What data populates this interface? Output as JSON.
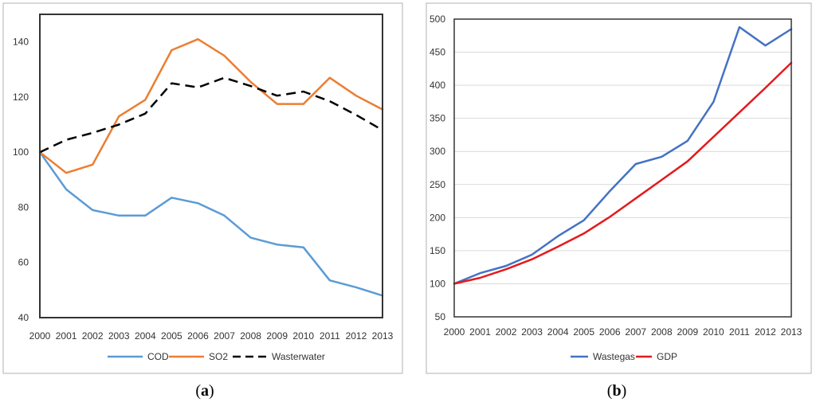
{
  "chart_data": [
    {
      "type": "line",
      "caption": {
        "open": "(",
        "letter": "a",
        "close": ")"
      },
      "x": [
        "2000",
        "2001",
        "2002",
        "2003",
        "2004",
        "2005",
        "2006",
        "2007",
        "2008",
        "2009",
        "2010",
        "2011",
        "2012",
        "2013"
      ],
      "ylim": [
        40,
        150
      ],
      "yticks": [
        40,
        60,
        80,
        100,
        120,
        140
      ],
      "grid": false,
      "legend_position": "bottom",
      "series": [
        {
          "name": "COD",
          "color": "#5b9bd5",
          "dash": "none",
          "values": [
            100,
            86.5,
            79,
            77,
            77,
            83.5,
            81.5,
            77,
            69,
            66.5,
            65.5,
            53.5,
            51,
            48
          ]
        },
        {
          "name": "SO2",
          "color": "#ed7d31",
          "dash": "none",
          "values": [
            100,
            92.5,
            95.5,
            113,
            119,
            137,
            141,
            135,
            125.5,
            117.5,
            117.5,
            127,
            120.5,
            115.5
          ]
        },
        {
          "name": "Wasterwater",
          "color": "#000000",
          "dash": "12,7",
          "values": [
            100,
            104.5,
            107,
            110,
            114,
            125,
            123.5,
            127,
            124,
            120.5,
            122,
            118.5,
            113.5,
            108
          ]
        }
      ]
    },
    {
      "type": "line",
      "caption": {
        "open": "(",
        "letter": "b",
        "close": ")"
      },
      "x": [
        "2000",
        "2001",
        "2002",
        "2003",
        "2004",
        "2005",
        "2006",
        "2007",
        "2008",
        "2009",
        "2010",
        "2011",
        "2012",
        "2013"
      ],
      "ylim": [
        50,
        500
      ],
      "yticks": [
        50,
        100,
        150,
        200,
        250,
        300,
        350,
        400,
        450,
        500
      ],
      "grid": true,
      "legend_position": "bottom",
      "series": [
        {
          "name": "Wastegas",
          "color": "#4472c4",
          "dash": "none",
          "values": [
            100,
            116,
            127,
            144,
            172,
            196,
            240,
            281,
            292,
            316,
            375,
            488,
            460,
            485
          ]
        },
        {
          "name": "GDP",
          "color": "#e31a1c",
          "dash": "none",
          "values": [
            100,
            109,
            122,
            137,
            156,
            176,
            201,
            229,
            257,
            285,
            322,
            359,
            396,
            434
          ]
        }
      ]
    }
  ]
}
